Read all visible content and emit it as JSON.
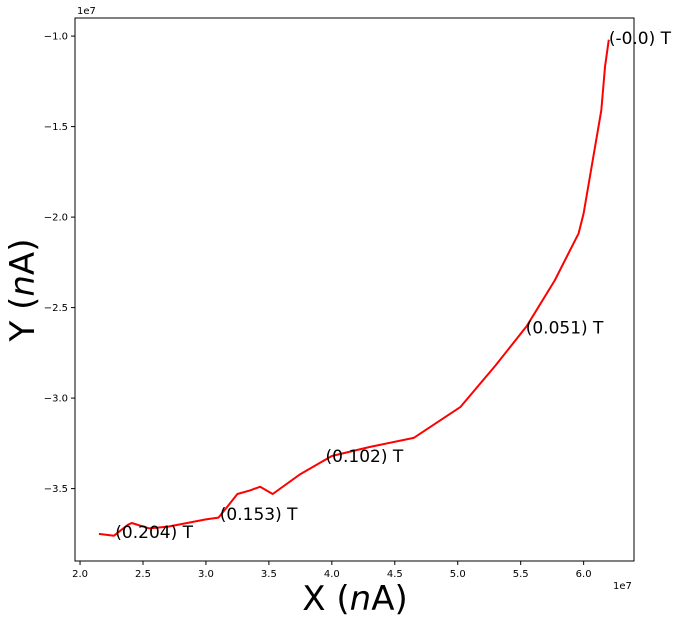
{
  "chart_data": {
    "type": "line",
    "title": "",
    "xlabel_prefix": "X (",
    "xlabel_unit_italic": "n",
    "xlabel_suffix": "A)",
    "ylabel_prefix": "Y (",
    "ylabel_unit_italic": "n",
    "ylabel_suffix": "A)",
    "x_offset_label": "1e7",
    "y_offset_label": "1e7",
    "xlim": [
      1.96,
      6.4
    ],
    "ylim": [
      -3.9,
      -0.9
    ],
    "xticks": [
      {
        "value": 2.0,
        "label": "2.0"
      },
      {
        "value": 2.5,
        "label": "2.5"
      },
      {
        "value": 3.0,
        "label": "3.0"
      },
      {
        "value": 3.5,
        "label": "3.5"
      },
      {
        "value": 4.0,
        "label": "4.0"
      },
      {
        "value": 4.5,
        "label": "4.5"
      },
      {
        "value": 5.0,
        "label": "5.0"
      },
      {
        "value": 5.5,
        "label": "5.5"
      },
      {
        "value": 6.0,
        "label": "6.0"
      }
    ],
    "yticks": [
      {
        "value": -1.0,
        "label": "−1.0"
      },
      {
        "value": -1.5,
        "label": "−1.5"
      },
      {
        "value": -2.0,
        "label": "−2.0"
      },
      {
        "value": -2.5,
        "label": "−2.5"
      },
      {
        "value": -3.0,
        "label": "−3.0"
      },
      {
        "value": -3.5,
        "label": "−3.5"
      }
    ],
    "grid": false,
    "series": [
      {
        "color": "#ff0000",
        "x": [
          2.15,
          2.27,
          2.38,
          2.41,
          2.55,
          2.7,
          2.85,
          3.0,
          3.1,
          3.17,
          3.25,
          3.35,
          3.43,
          3.53,
          3.75,
          4.0,
          4.3,
          4.65,
          5.02,
          5.3,
          5.55,
          5.77,
          5.96,
          6.0,
          6.14,
          6.17,
          6.2
        ],
        "y": [
          -3.75,
          -3.76,
          -3.7,
          -3.69,
          -3.72,
          -3.71,
          -3.69,
          -3.67,
          -3.66,
          -3.6,
          -3.53,
          -3.51,
          -3.49,
          -3.53,
          -3.42,
          -3.32,
          -3.27,
          -3.22,
          -3.05,
          -2.82,
          -2.6,
          -2.35,
          -2.09,
          -1.98,
          -1.41,
          -1.17,
          -1.02
        ]
      }
    ],
    "annotations": [
      {
        "text": "(0.204) T",
        "x": 2.28,
        "y": -3.74
      },
      {
        "text": "(0.153) T",
        "x": 3.11,
        "y": -3.64
      },
      {
        "text": "(0.102) T",
        "x": 3.95,
        "y": -3.32
      },
      {
        "text": "(0.051) T",
        "x": 5.54,
        "y": -2.61
      },
      {
        "text": "(-0.0) T",
        "x": 6.2,
        "y": -1.01
      }
    ]
  }
}
